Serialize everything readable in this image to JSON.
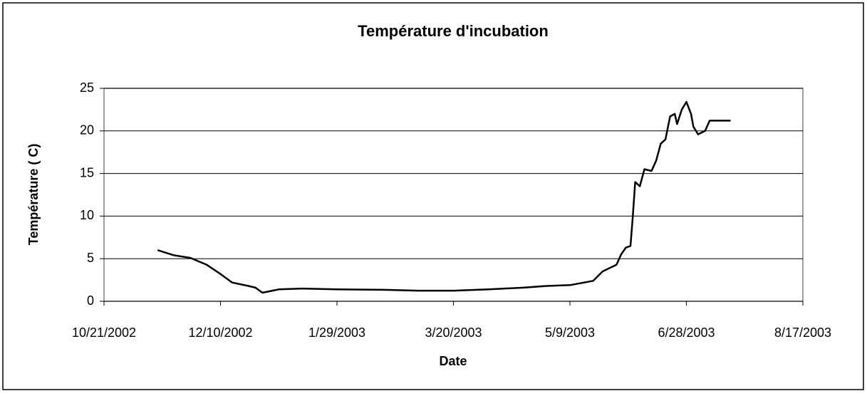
{
  "chart_data": {
    "type": "line",
    "title": "Température d'incubation",
    "x_label": "Date",
    "y_label": "Température ( C)",
    "x": [
      "2002-11-13",
      "2002-11-20",
      "2002-11-27",
      "2002-12-04",
      "2002-12-10",
      "2002-12-15",
      "2002-12-22",
      "2002-12-25",
      "2002-12-28",
      "2003-01-04",
      "2003-01-14",
      "2003-01-29",
      "2003-02-18",
      "2003-03-05",
      "2003-03-20",
      "2003-04-04",
      "2003-04-19",
      "2003-04-29",
      "2003-05-09",
      "2003-05-19",
      "2003-05-23",
      "2003-05-29",
      "2003-05-31",
      "2003-06-02",
      "2003-06-04",
      "2003-06-05",
      "2003-06-06",
      "2003-06-08",
      "2003-06-10",
      "2003-06-13",
      "2003-06-15",
      "2003-06-17",
      "2003-06-19",
      "2003-06-21",
      "2003-06-23",
      "2003-06-24",
      "2003-06-26",
      "2003-06-28",
      "2003-06-30",
      "2003-07-01",
      "2003-07-03",
      "2003-07-06",
      "2003-07-08",
      "2003-07-11",
      "2003-07-17"
    ],
    "values": [
      6.0,
      5.4,
      5.1,
      4.3,
      3.2,
      2.2,
      1.8,
      1.6,
      1.0,
      1.4,
      1.5,
      1.4,
      1.35,
      1.25,
      1.25,
      1.4,
      1.6,
      1.8,
      1.9,
      2.4,
      3.5,
      4.3,
      5.5,
      6.3,
      6.5,
      10,
      14,
      13.5,
      15.5,
      15.3,
      16.5,
      18.5,
      19.0,
      21.7,
      22.0,
      20.8,
      22.5,
      23.4,
      22.0,
      20.5,
      19.6,
      20.0,
      21.2,
      21.2,
      21.2
    ],
    "color": "#000000",
    "xlim": [
      "2002-10-21",
      "2003-08-17"
    ],
    "xticks": [
      {
        "value": "2002-10-21",
        "label": "10/21/2002"
      },
      {
        "value": "2002-12-10",
        "label": "12/10/2002"
      },
      {
        "value": "2003-01-29",
        "label": "1/29/2003"
      },
      {
        "value": "2003-03-20",
        "label": "3/20/2003"
      },
      {
        "value": "2003-05-09",
        "label": "5/9/2003"
      },
      {
        "value": "2003-06-28",
        "label": "6/28/2003"
      },
      {
        "value": "2003-08-17",
        "label": "8/17/2003"
      }
    ],
    "ylim": [
      0,
      25
    ],
    "yticks": [
      0,
      5,
      10,
      15,
      20,
      25
    ],
    "grid": true
  }
}
